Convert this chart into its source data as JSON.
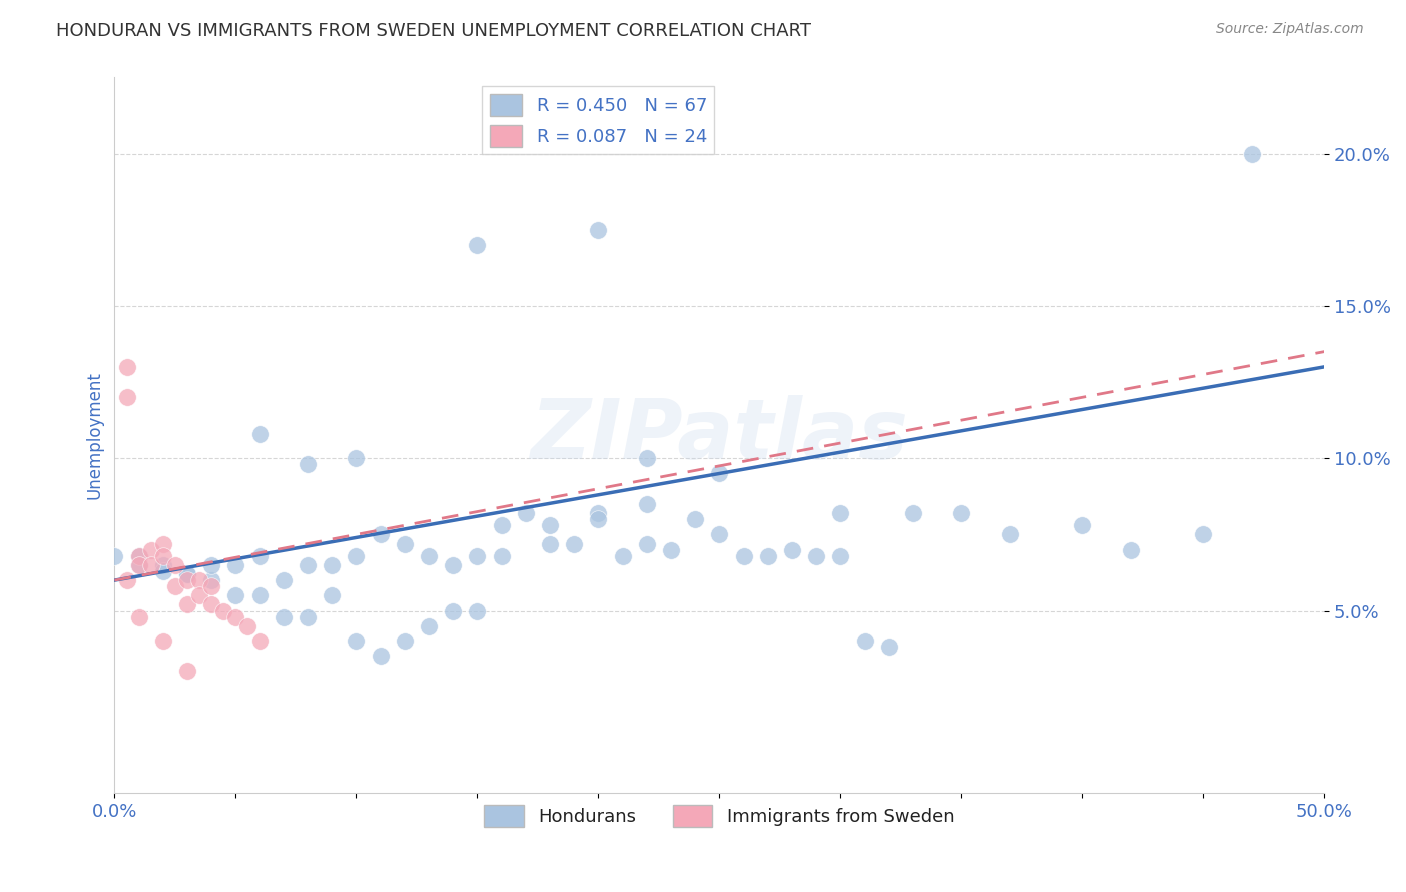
{
  "title": "HONDURAN VS IMMIGRANTS FROM SWEDEN UNEMPLOYMENT CORRELATION CHART",
  "source": "Source: ZipAtlas.com",
  "ylabel": "Unemployment",
  "xlim": [
    0,
    0.5
  ],
  "ylim": [
    -0.01,
    0.225
  ],
  "yticks": [
    0.05,
    0.1,
    0.15,
    0.2
  ],
  "ytick_labels": [
    "5.0%",
    "10.0%",
    "15.0%",
    "20.0%"
  ],
  "xtick_labels_show": [
    "0.0%",
    "50.0%"
  ],
  "series1_label": "Hondurans",
  "series2_label": "Immigrants from Sweden",
  "series1_R": "R = 0.450",
  "series1_N": "N = 67",
  "series2_R": "R = 0.087",
  "series2_N": "N = 24",
  "series1_color": "#aac4e0",
  "series2_color": "#f4a8b8",
  "trendline1_color": "#3a6db5",
  "trendline2_color": "#e07888",
  "watermark": "ZIPatlas",
  "title_color": "#333333",
  "axis_label_color": "#4472c4",
  "trendline1_x0": 0.0,
  "trendline1_y0": 0.06,
  "trendline1_x1": 0.5,
  "trendline1_y1": 0.13,
  "trendline2_x0": 0.0,
  "trendline2_y0": 0.06,
  "trendline2_x1": 0.5,
  "trendline2_y1": 0.135,
  "series1_x": [
    0.47,
    0.3,
    0.25,
    0.22,
    0.2,
    0.18,
    0.16,
    0.15,
    0.14,
    0.13,
    0.12,
    0.11,
    0.1,
    0.09,
    0.08,
    0.07,
    0.06,
    0.05,
    0.04,
    0.03,
    0.02,
    0.01,
    0.0,
    0.01,
    0.02,
    0.03,
    0.04,
    0.05,
    0.06,
    0.07,
    0.08,
    0.09,
    0.1,
    0.11,
    0.12,
    0.13,
    0.14,
    0.15,
    0.16,
    0.17,
    0.18,
    0.19,
    0.2,
    0.21,
    0.22,
    0.23,
    0.24,
    0.25,
    0.26,
    0.27,
    0.28,
    0.29,
    0.3,
    0.31,
    0.32,
    0.33,
    0.35,
    0.37,
    0.4,
    0.42,
    0.45,
    0.2,
    0.15,
    0.1,
    0.22,
    0.08,
    0.06
  ],
  "series1_y": [
    0.2,
    0.082,
    0.095,
    0.085,
    0.082,
    0.072,
    0.068,
    0.068,
    0.065,
    0.068,
    0.072,
    0.075,
    0.068,
    0.065,
    0.065,
    0.06,
    0.068,
    0.065,
    0.06,
    0.062,
    0.065,
    0.068,
    0.068,
    0.065,
    0.063,
    0.062,
    0.065,
    0.055,
    0.055,
    0.048,
    0.048,
    0.055,
    0.04,
    0.035,
    0.04,
    0.045,
    0.05,
    0.05,
    0.078,
    0.082,
    0.078,
    0.072,
    0.08,
    0.068,
    0.072,
    0.07,
    0.08,
    0.075,
    0.068,
    0.068,
    0.07,
    0.068,
    0.068,
    0.04,
    0.038,
    0.082,
    0.082,
    0.075,
    0.078,
    0.07,
    0.075,
    0.175,
    0.17,
    0.1,
    0.1,
    0.098,
    0.108
  ],
  "series2_x": [
    0.005,
    0.005,
    0.01,
    0.01,
    0.015,
    0.015,
    0.02,
    0.02,
    0.025,
    0.025,
    0.03,
    0.03,
    0.035,
    0.035,
    0.04,
    0.04,
    0.045,
    0.05,
    0.055,
    0.06,
    0.005,
    0.01,
    0.02,
    0.03
  ],
  "series2_y": [
    0.13,
    0.12,
    0.068,
    0.065,
    0.07,
    0.065,
    0.072,
    0.068,
    0.065,
    0.058,
    0.06,
    0.052,
    0.06,
    0.055,
    0.058,
    0.052,
    0.05,
    0.048,
    0.045,
    0.04,
    0.06,
    0.048,
    0.04,
    0.03
  ]
}
